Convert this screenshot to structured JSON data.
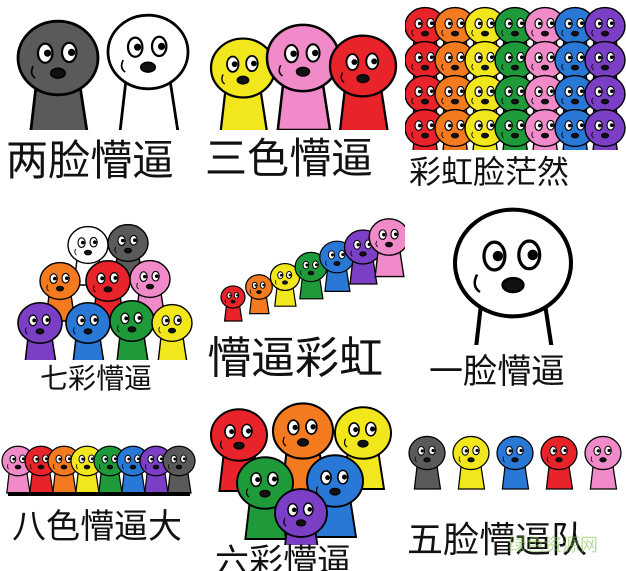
{
  "captions": {
    "c1": "两脸懵逼",
    "c2": "三色懵逼",
    "c3": "彩虹脸茫然",
    "c4": "七彩懵逼",
    "c5": "懵逼彩虹",
    "c6": "一脸懵逼",
    "c7": "八色懵逼大",
    "c8": "六彩懵逼",
    "c9": "五脸懵逼队"
  },
  "watermark": "绿色资源网",
  "colors": {
    "red": "#e8232a",
    "orange": "#f47a20",
    "yellow": "#f2e61c",
    "green": "#1f9a3a",
    "blue": "#2a78d6",
    "purple": "#7a3fc4",
    "pink": "#f08ac8",
    "gray": "#5a5a5a",
    "white": "#ffffff"
  }
}
